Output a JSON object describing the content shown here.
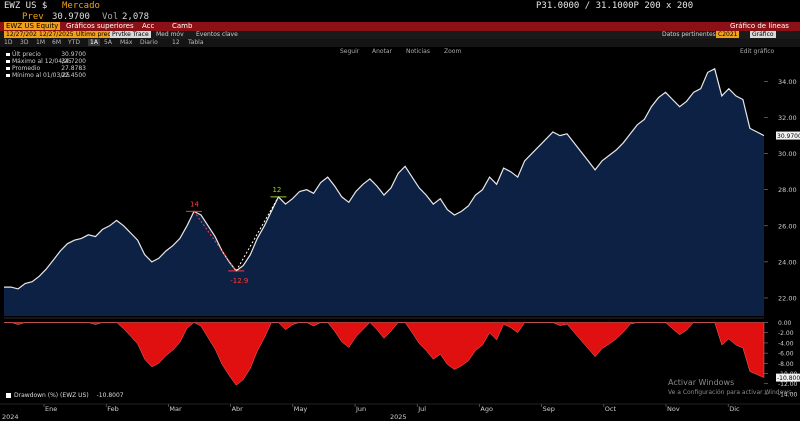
{
  "header": {
    "ticker": "EWZ US $",
    "market_label": "Mercado",
    "quote": "P31.0000 / 31.1000P 200 x 200",
    "prev_label": "Prev",
    "prev_value": "30.9700",
    "vol_label": "Vol",
    "vol_value": "2,078"
  },
  "toolbar": {
    "equity_tab": "EWZ US Equity",
    "menu_graficos": "Gráficos superiores",
    "menu_acc": "Acc",
    "menu_camb": "Camb",
    "title_right": "Gráfico de líneas"
  },
  "controls": {
    "date_start": "12/27/2024",
    "date_end": "12/27/2025",
    "last_price": "Último precio",
    "avg_label": "Prvtke Trace",
    "mov_label": "Med móv",
    "events_label": "Eventos clave",
    "data_label": "Datos pertinentes",
    "chart_tab": "Gráfico",
    "chart_name": "C2021"
  },
  "ranges": [
    "1D",
    "3D",
    "1M",
    "6M",
    "YTD",
    "1A",
    "5A",
    "Máx",
    "Diario",
    "12",
    "Tabla"
  ],
  "range_selected": "1A",
  "tools": {
    "seguir": "Seguir",
    "anotar": "Anotar",
    "noticias": "Noticias",
    "zoom": "Zoom",
    "edit": "Edit gráfico"
  },
  "legend": [
    {
      "label": "Últ precio",
      "value": "30.9700",
      "color": "#ffffff"
    },
    {
      "label": "Máximo al 12/04/25",
      "value": "34.7200",
      "color": "#ffffff"
    },
    {
      "label": "Promedio",
      "value": "27.8783",
      "color": "#ffffff"
    },
    {
      "label": "Mínimo al 01/03/25",
      "value": "22.4500",
      "color": "#ffffff"
    }
  ],
  "drawdown_legend": {
    "label": "Drawdown (%) (EWZ US)",
    "value": "-10.8007"
  },
  "watermark": {
    "line1": "Activar Windows",
    "line2": "Ve a Configuración para activar Windows."
  },
  "chart_data": {
    "type": "area",
    "x_labels": [
      "Ene",
      "Feb",
      "Mar",
      "Abr",
      "May",
      "Jun",
      "Jul",
      "Ago",
      "Sep",
      "Oct",
      "Nov",
      "Dic"
    ],
    "year_labels": [
      "2024",
      "2025"
    ],
    "price_axis": {
      "ticks": [
        22.0,
        24.0,
        26.0,
        28.0,
        30.0,
        32.0,
        34.0
      ],
      "ylim": [
        21.0,
        35.3
      ],
      "last": "30.9700"
    },
    "drawdown_axis": {
      "ticks": [
        "0.00",
        "-2.00",
        "-4.00",
        "-6.00",
        "-8.00",
        "-10.00",
        "-12.00",
        "-14.00"
      ],
      "ylim": [
        0.5,
        -14.8
      ],
      "last": "-10.800"
    },
    "price": [
      22.6,
      22.6,
      22.5,
      22.8,
      22.9,
      23.2,
      23.6,
      24.1,
      24.6,
      25.0,
      25.2,
      25.3,
      25.5,
      25.4,
      25.8,
      26.0,
      26.3,
      26.0,
      25.6,
      25.2,
      24.4,
      24.0,
      24.2,
      24.6,
      24.9,
      25.3,
      26.0,
      26.8,
      26.6,
      26.0,
      25.4,
      24.6,
      24.0,
      23.5,
      23.8,
      24.4,
      25.3,
      26.0,
      26.8,
      27.6,
      27.2,
      27.5,
      27.9,
      28.0,
      27.8,
      28.4,
      28.7,
      28.2,
      27.6,
      27.3,
      27.9,
      28.3,
      28.6,
      28.2,
      27.7,
      28.1,
      28.9,
      29.3,
      28.7,
      28.1,
      27.7,
      27.2,
      27.5,
      26.9,
      26.6,
      26.8,
      27.1,
      27.7,
      28.0,
      28.7,
      28.3,
      29.2,
      29.0,
      28.7,
      29.6,
      30.0,
      30.4,
      30.8,
      31.2,
      31.0,
      31.1,
      30.6,
      30.1,
      29.6,
      29.1,
      29.6,
      29.9,
      30.2,
      30.6,
      31.1,
      31.6,
      31.9,
      32.6,
      33.1,
      33.4,
      33.0,
      32.6,
      32.9,
      33.4,
      33.6,
      34.5,
      34.7,
      33.2,
      33.6,
      33.2,
      33.0,
      31.4,
      31.2,
      31.0
    ],
    "drawdown": [
      0.0,
      0.0,
      -0.4,
      0.0,
      0.0,
      0.0,
      0.0,
      0.0,
      0.0,
      0.0,
      0.0,
      0.0,
      0.0,
      -0.4,
      0.0,
      0.0,
      0.0,
      -1.2,
      -2.7,
      -4.2,
      -7.2,
      -8.7,
      -8.0,
      -6.5,
      -5.4,
      -3.9,
      -1.1,
      0.0,
      -0.7,
      -3.0,
      -5.2,
      -8.2,
      -10.4,
      -12.3,
      -11.2,
      -9.0,
      -5.6,
      -3.0,
      0.0,
      0.0,
      -1.4,
      -0.4,
      0.0,
      0.0,
      -0.7,
      0.0,
      0.0,
      -1.7,
      -3.8,
      -4.9,
      -2.8,
      -1.4,
      0.0,
      -1.4,
      -3.1,
      -1.7,
      0.0,
      0.0,
      -2.0,
      -4.1,
      -5.5,
      -7.2,
      -6.2,
      -8.2,
      -9.2,
      -8.5,
      -7.5,
      -5.5,
      -4.4,
      -2.0,
      -3.4,
      -0.3,
      -1.0,
      -2.0,
      0.0,
      0.0,
      0.0,
      0.0,
      0.0,
      -0.6,
      -0.3,
      -1.9,
      -3.5,
      -5.1,
      -6.7,
      -5.1,
      -4.2,
      -3.2,
      -1.9,
      -0.3,
      0.0,
      0.0,
      0.0,
      0.0,
      0.0,
      -1.2,
      -2.4,
      -1.5,
      0.0,
      0.0,
      0.0,
      0.0,
      -4.4,
      -3.2,
      -4.4,
      -5.0,
      -9.6,
      -10.2,
      -10.8
    ],
    "annotations": [
      {
        "label": "14",
        "color": "#ff3b3b"
      },
      {
        "label": "-12.9",
        "color": "#ff3b3b"
      },
      {
        "label": "12",
        "color": "#9acd32"
      }
    ]
  }
}
